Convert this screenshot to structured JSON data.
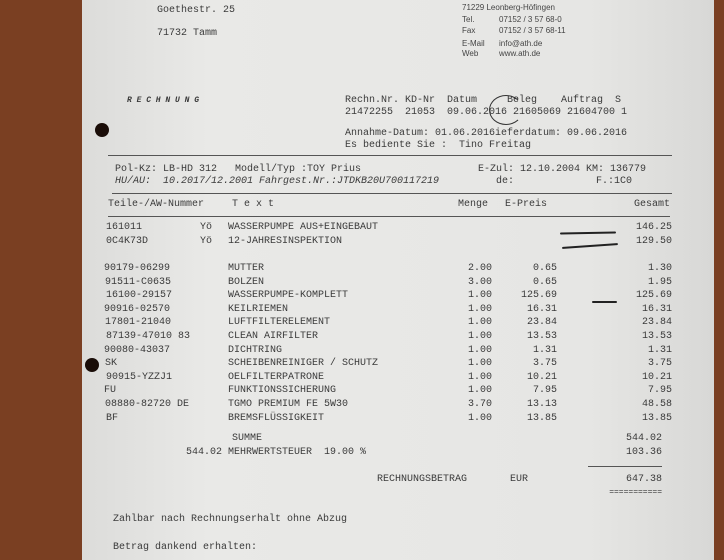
{
  "customer": {
    "street": "Goethestr. 25",
    "city": "71732 Tamm"
  },
  "company": {
    "city": "71229 Leonberg-Höfingen",
    "tel_label": "Tel.",
    "tel": "07152 / 3 57 68-0",
    "fax_label": "Fax",
    "fax": "07152 / 3 57 68-11",
    "email_label": "E-Mail",
    "email": "info@ath.de",
    "web_label": "Web",
    "web": "www.ath.de"
  },
  "doc_title": "R E C H N U N G",
  "meta": {
    "header": "Rechn.Nr. KD-Nr  Datum     Beleg    Auftrag  S",
    "values": "21472255  21053  09.06.2016 21605069 21604700 1",
    "annahme": "Annahme-Datum: 01.06.2016ieferdatum: 09.06.2016",
    "bediener": "Es bediente Sie :  Tino Freitag"
  },
  "vehicle": {
    "line1": "Pol-Kz: LB-HD 312   Modell/Typ :TOY Prius",
    "line1b": "E-Zul: 12.10.2004 KM: 136779",
    "line2": "HU/AU:  10.2017/12.2001 Fahrgest.Nr.:JTDKB20U700117219",
    "line2b": "de:",
    "line2c": "F.:1C0"
  },
  "columns": {
    "part": "Teile-/AW-Nummer",
    "text": "T e x t",
    "qty": "Menge",
    "price": "E-Preis",
    "total": "Gesamt"
  },
  "labor": [
    {
      "part": "161011",
      "code": "Yö",
      "text": "WASSERPUMPE AUS+EINGEBAUT",
      "total": "146.25"
    },
    {
      "part": "0C4K73D",
      "code": "Yö",
      "text": "12-JAHRESINSPEKTION",
      "total": "129.50"
    }
  ],
  "items": [
    {
      "part": "90179-06299",
      "text": "MUTTER",
      "qty": "2.00",
      "price": "0.65",
      "total": "1.30"
    },
    {
      "part": "91511-C0635",
      "text": "BOLZEN",
      "qty": "3.00",
      "price": "0.65",
      "total": "1.95"
    },
    {
      "part": "16100-29157",
      "text": "WASSERPUMPE-KOMPLETT",
      "qty": "1.00",
      "price": "125.69",
      "total": "125.69"
    },
    {
      "part": "90916-02570",
      "text": "KEILRIEMEN",
      "qty": "1.00",
      "price": "16.31",
      "total": "16.31"
    },
    {
      "part": "17801-21040",
      "text": "LUFTFILTERELEMENT",
      "qty": "1.00",
      "price": "23.84",
      "total": "23.84"
    },
    {
      "part": "87139-47010 83",
      "text": "CLEAN AIRFILTER",
      "qty": "1.00",
      "price": "13.53",
      "total": "13.53"
    },
    {
      "part": "90080-43037",
      "text": "DICHTRING",
      "qty": "1.00",
      "price": "1.31",
      "total": "1.31"
    },
    {
      "part": "SK",
      "text": "SCHEIBENREINIGER / SCHUTZ",
      "qty": "1.00",
      "price": "3.75",
      "total": "3.75"
    },
    {
      "part": "90915-YZZJ1",
      "text": "OELFILTERPATRONE",
      "qty": "1.00",
      "price": "10.21",
      "total": "10.21"
    },
    {
      "part": "FU",
      "text": "FUNKTIONSSICHERUNG",
      "qty": "1.00",
      "price": "7.95",
      "total": "7.95"
    },
    {
      "part": "08880-82720 DE",
      "text": "TGMO PREMIUM FE 5W30",
      "qty": "3.70",
      "price": "13.13",
      "total": "48.58"
    },
    {
      "part": "BF",
      "text": "BREMSFLÜSSIGKEIT",
      "qty": "1.00",
      "price": "13.85",
      "total": "13.85"
    }
  ],
  "totals": {
    "summe_label": "SUMME",
    "summe": "544.02",
    "mwst_label": "544.02 MEHRWERTSTEUER  19.00 %",
    "mwst": "103.36",
    "betrag_label": "RECHNUNGSBETRAG",
    "currency": "EUR",
    "betrag": "647.38",
    "underline": "==========="
  },
  "footer": {
    "terms": "Zahlbar nach Rechnungserhalt ohne Abzug",
    "received": "Betrag dankend erhalten:"
  }
}
